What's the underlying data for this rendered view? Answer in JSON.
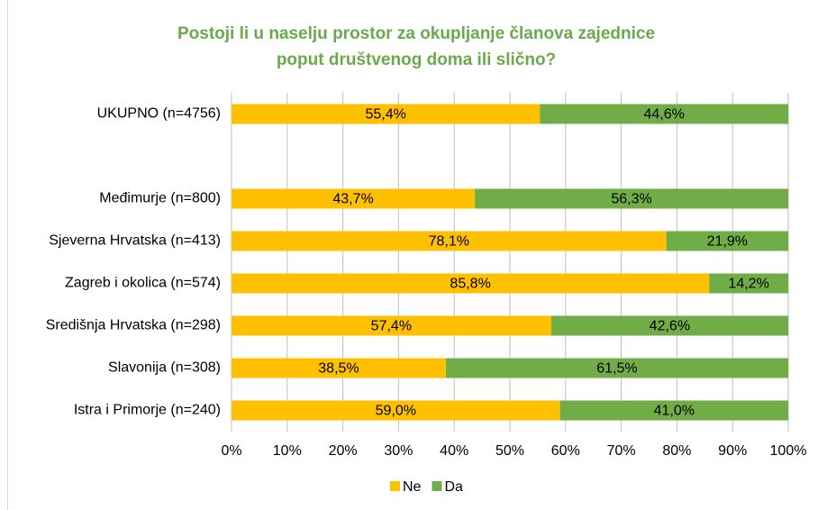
{
  "chart_data": {
    "type": "stacked_barh",
    "title": [
      "Postoji li u naselju prostor za okupljanje članova zajednice",
      "poput društvenog doma ili slično?"
    ],
    "categories": [
      "UKUPNO (n=4756)",
      null,
      "Međimurje (n=800)",
      "Sjeverna Hrvatska (n=413)",
      "Zagreb i okolica (n=574)",
      "Središnja Hrvatska (n=298)",
      "Slavonija (n=308)",
      "Istra i Primorje (n=240)"
    ],
    "series": [
      {
        "name": "Ne",
        "color": "#ffc000",
        "values": [
          55.4,
          null,
          43.7,
          78.1,
          85.8,
          57.4,
          38.5,
          59.0
        ],
        "value_labels": [
          "55,4%",
          null,
          "43,7%",
          "78,1%",
          "85,8%",
          "57,4%",
          "38,5%",
          "59,0%"
        ]
      },
      {
        "name": "Da",
        "color": "#70ad47",
        "values": [
          44.6,
          null,
          56.3,
          21.9,
          14.2,
          42.6,
          61.5,
          41.0
        ],
        "value_labels": [
          "44,6%",
          null,
          "56,3%",
          "21,9%",
          "14,2%",
          "42,6%",
          "61,5%",
          "41,0%"
        ]
      }
    ],
    "xlim": [
      0,
      100
    ],
    "xticks": [
      {
        "value": 0,
        "label": "0%"
      },
      {
        "value": 10,
        "label": "10%"
      },
      {
        "value": 20,
        "label": "20%"
      },
      {
        "value": 30,
        "label": "30%"
      },
      {
        "value": 40,
        "label": "40%"
      },
      {
        "value": 50,
        "label": "50%"
      },
      {
        "value": 60,
        "label": "60%"
      },
      {
        "value": 70,
        "label": "70%"
      },
      {
        "value": 80,
        "label": "80%"
      },
      {
        "value": 90,
        "label": "90%"
      },
      {
        "value": 100,
        "label": "100%"
      }
    ],
    "grid": true,
    "legend": "bottom"
  }
}
